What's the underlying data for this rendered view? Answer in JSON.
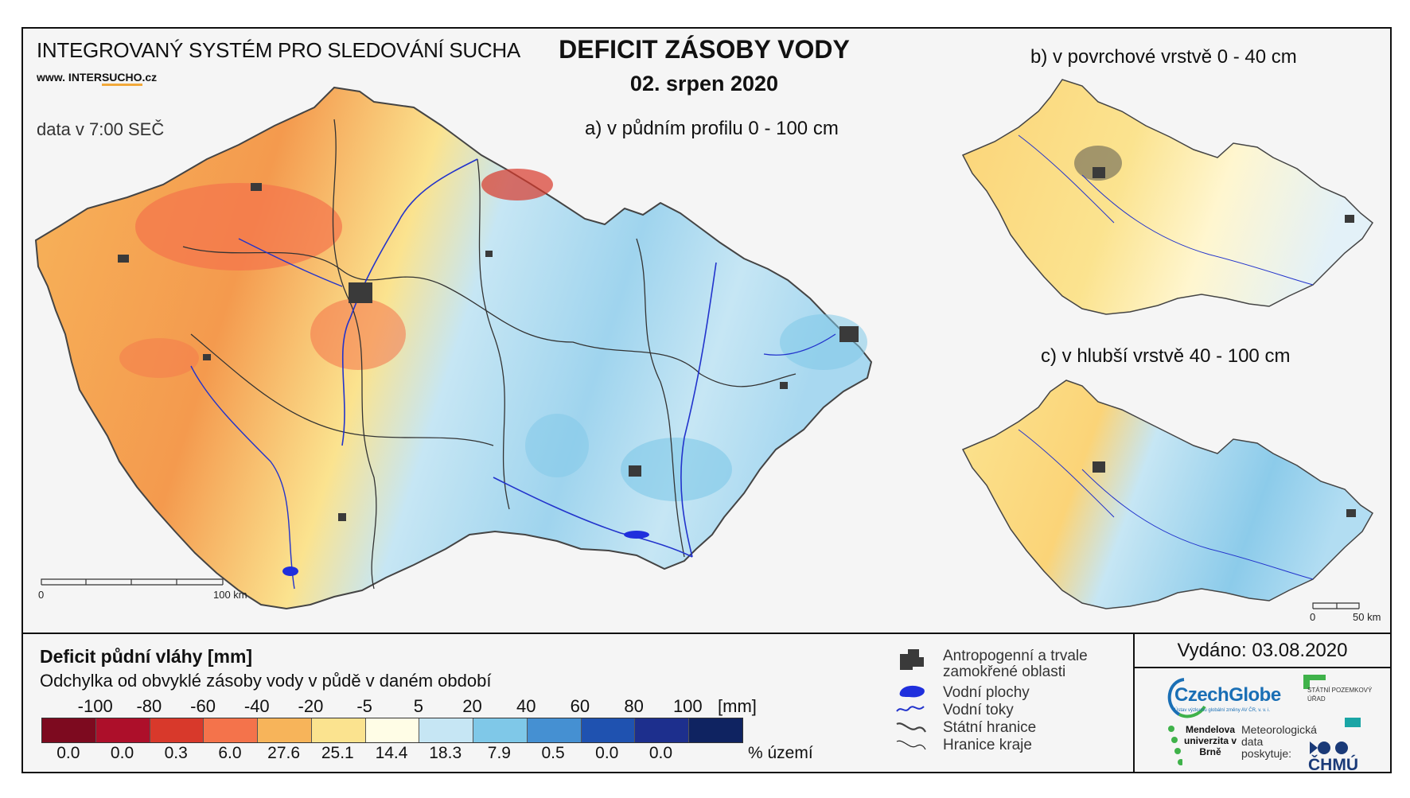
{
  "header": {
    "system_title": "INTEGROVANÝ SYSTÉM PRO SLEDOVÁNÍ SUCHA",
    "site_prefix": "www. INTER",
    "site_highlight": "SUCHO",
    "site_suffix": ".cz",
    "data_time": "data v 7:00 SEČ",
    "main_title": "DEFICIT ZÁSOBY VODY",
    "date": "02. srpen 2020"
  },
  "maps": {
    "a_label": "a) v půdním profilu 0 - 100 cm",
    "b_label": "b) v povrchové vrstvě 0 - 40 cm",
    "c_label": "c) v hlubší vrstvě 40 - 100 cm",
    "scale_main": {
      "zero": "0",
      "end": "100 km"
    },
    "scale_small": {
      "zero": "0",
      "end": "50 km"
    }
  },
  "legend": {
    "title": "Deficit půdní vláhy  [mm]",
    "subtitle": "Odchylka od obvyklé zásoby vody v půdě v daném období",
    "breaks": [
      "-100",
      "-80",
      "-60",
      "-40",
      "-20",
      "-5",
      "5",
      "20",
      "40",
      "60",
      "80",
      "100"
    ],
    "unit": "[mm]",
    "colors": [
      "#7d0a1f",
      "#ad0f2a",
      "#d8392b",
      "#f4734b",
      "#f7b45a",
      "#fbe38f",
      "#fffde6",
      "#c6e6f4",
      "#7fc8e8",
      "#4590d2",
      "#1f52b0",
      "#1d2f8d",
      "#0f2361"
    ],
    "percentages": [
      "0.0",
      "0.0",
      "0.3",
      "6.0",
      "27.6",
      "25.1",
      "14.4",
      "18.3",
      "7.9",
      "0.5",
      "0.0",
      "0.0"
    ],
    "percent_unit": "% území"
  },
  "symbols": {
    "urban": "Antropogenní a trvale zamokřené oblasti",
    "urban_line1": "Antropogenní a trvale",
    "urban_line2": "zamokřené oblasti",
    "water_bodies": "Vodní plochy",
    "rivers": "Vodní toky",
    "state_border": "Státní hranice",
    "region_border": "Hranice kraje"
  },
  "footer": {
    "issued": "Vydáno: 03.08.2020",
    "czechglobe": "CzechGlobe",
    "czechglobe_sub": "Ústav výzkumu globální změny AV ČR, v. v. i.",
    "spu": "STÁTNÍ POZEMKOVÝ ÚŘAD",
    "mendel": "Mendelova univerzita v Brně",
    "meteo": "Meteorologická data poskytuje:",
    "chmu": "ČHMÚ"
  }
}
